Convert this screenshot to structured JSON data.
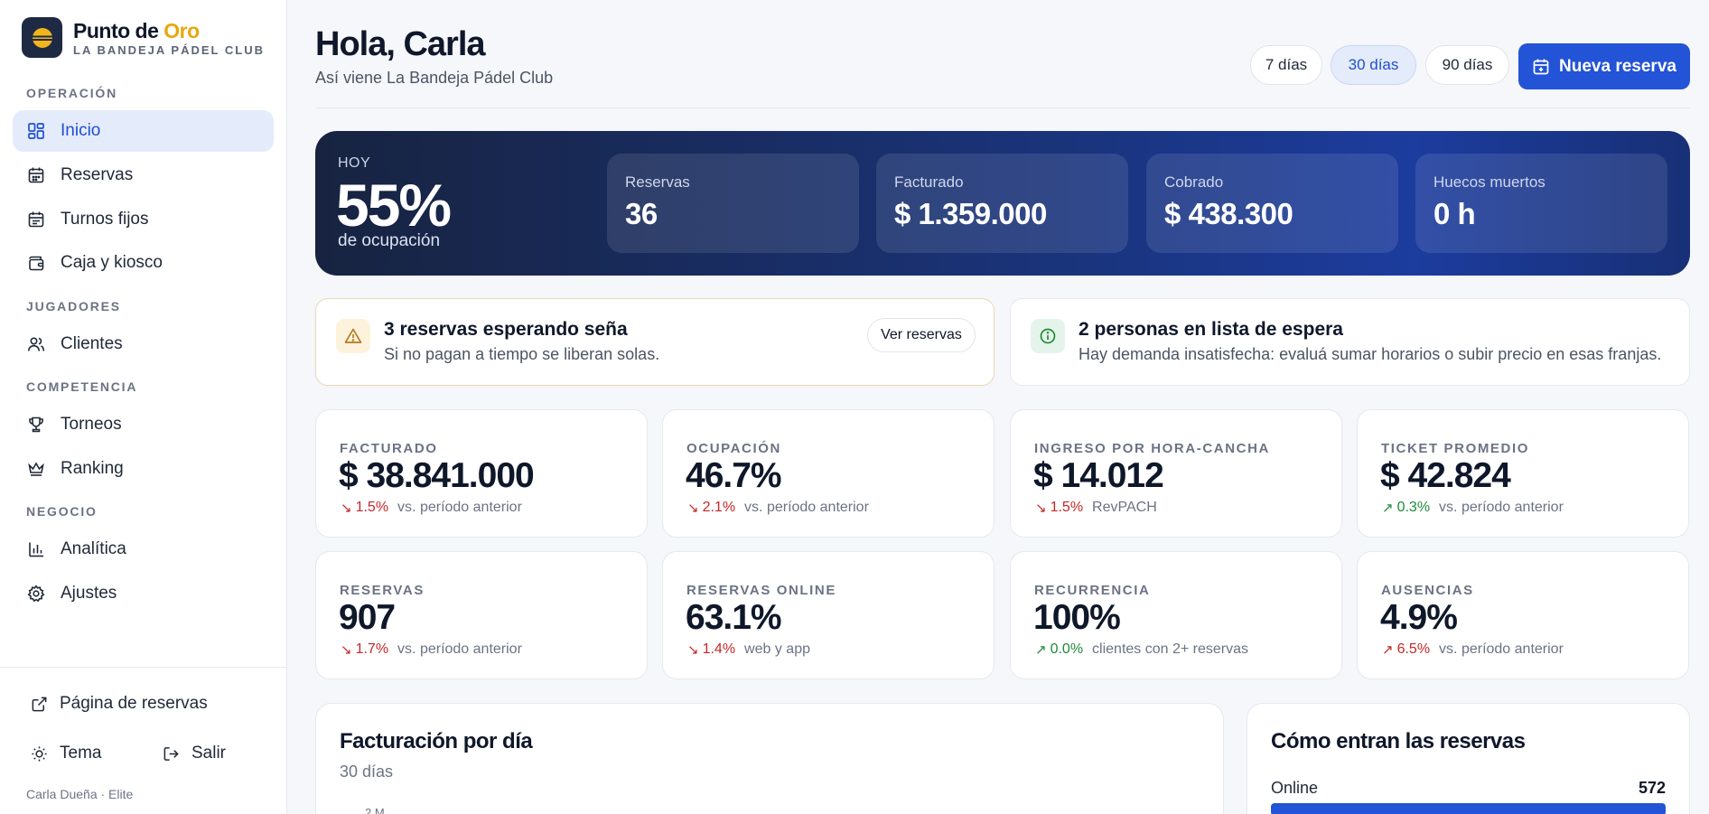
{
  "brand": {
    "name_main": "Punto de ",
    "name_accent": "Oro",
    "subtitle": "LA BANDEJA PÁDEL CLUB"
  },
  "sidebar": {
    "sections": {
      "operacion": "OPERACIÓN",
      "jugadores": "JUGADORES",
      "competencia": "COMPETENCIA",
      "negocio": "NEGOCIO"
    },
    "items": [
      {
        "label": "Inicio"
      },
      {
        "label": "Reservas"
      },
      {
        "label": "Turnos fijos"
      },
      {
        "label": "Caja y kiosco"
      },
      {
        "label": "Clientes"
      },
      {
        "label": "Torneos"
      },
      {
        "label": "Ranking"
      },
      {
        "label": "Analítica"
      },
      {
        "label": "Ajustes"
      }
    ],
    "booking_page": "Página de reservas",
    "theme": "Tema",
    "logout": "Salir",
    "user": "Carla Dueña · Elite"
  },
  "header": {
    "greeting": "Hola, Carla",
    "subtitle": "Así viene La Bandeja Pádel Club",
    "ranges": [
      "7 días",
      "30 días",
      "90 días"
    ],
    "active_range": "30 días",
    "new_booking": "Nueva reserva"
  },
  "hero": {
    "today": "HOY",
    "occupancy": "55%",
    "occupancy_caption": "de ocupación",
    "cards": [
      {
        "label": "Reservas",
        "value": "36"
      },
      {
        "label": "Facturado",
        "value": "$ 1.359.000"
      },
      {
        "label": "Cobrado",
        "value": "$ 438.300"
      },
      {
        "label": "Huecos muertos",
        "value": "0 h"
      }
    ]
  },
  "alerts": {
    "warning": {
      "title": "3 reservas esperando seña",
      "desc": "Si no pagan a tiempo se liberan solas.",
      "button": "Ver reservas"
    },
    "info": {
      "title": "2 personas en lista de espera",
      "desc": "Hay demanda insatisfecha: evaluá sumar horarios o subir precio en esas franjas."
    }
  },
  "kpis": [
    {
      "label": "FACTURADO",
      "value": "$ 38.841.000",
      "arrow": "↘",
      "delta": "1.5%",
      "trend": "down",
      "context": "vs. período anterior"
    },
    {
      "label": "OCUPACIÓN",
      "value": "46.7%",
      "arrow": "↘",
      "delta": "2.1%",
      "trend": "down",
      "context": "vs. período anterior"
    },
    {
      "label": "INGRESO POR HORA-CANCHA",
      "value": "$ 14.012",
      "arrow": "↘",
      "delta": "1.5%",
      "trend": "down",
      "context": "RevPACH"
    },
    {
      "label": "TICKET PROMEDIO",
      "value": "$ 42.824",
      "arrow": "↗",
      "delta": "0.3%",
      "trend": "up",
      "context": "vs. período anterior"
    },
    {
      "label": "RESERVAS",
      "value": "907",
      "arrow": "↘",
      "delta": "1.7%",
      "trend": "down",
      "context": "vs. período anterior"
    },
    {
      "label": "RESERVAS ONLINE",
      "value": "63.1%",
      "arrow": "↘",
      "delta": "1.4%",
      "trend": "down",
      "context": "web y app"
    },
    {
      "label": "RECURRENCIA",
      "value": "100%",
      "arrow": "↗",
      "delta": "0.0%",
      "trend": "up",
      "context": "clientes con 2+ reservas"
    },
    {
      "label": "AUSENCIAS",
      "value": "4.9%",
      "arrow": "↗",
      "delta": "6.5%",
      "trend": "down",
      "context": "vs. período anterior"
    }
  ],
  "panels": {
    "billing": {
      "title": "Facturación por día",
      "subtitle": "30 días",
      "first_tick": "2 M"
    },
    "channels": {
      "title": "Cómo entran las reservas",
      "online_label": "Online",
      "online_value": "572"
    }
  },
  "colors": {
    "primary": "#2353d6",
    "accent": "#e7a710",
    "down": "#c62828",
    "up": "#1f8a3b"
  }
}
